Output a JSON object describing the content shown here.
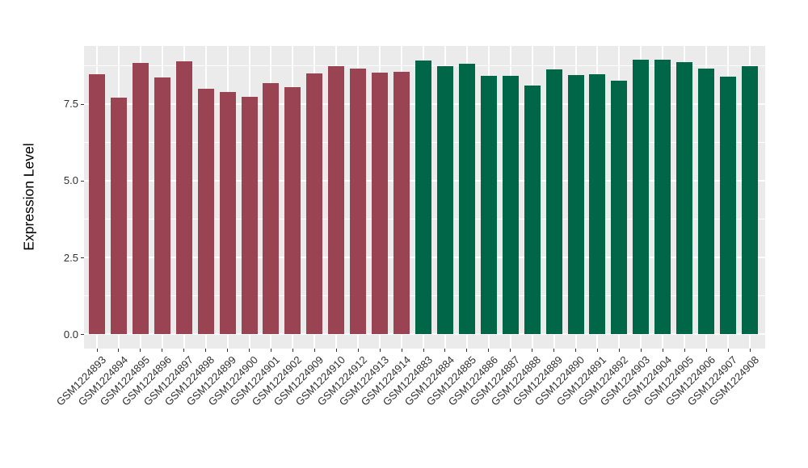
{
  "chart_data": {
    "type": "bar",
    "title": "",
    "xlabel": "",
    "ylabel": "Expression Level",
    "ylim": [
      -0.47,
      9.39
    ],
    "yticks": [
      0.0,
      2.5,
      5.0,
      7.5
    ],
    "ytick_labels": [
      "0.0",
      "2.5",
      "5.0",
      "7.5"
    ],
    "minor_yticks": [
      1.25,
      3.75,
      6.25,
      8.75
    ],
    "grid": true,
    "legend": "none",
    "panel_bg_color": "#EBEBEB",
    "grid_color": "#FFFFFF",
    "tick_color": "#333333",
    "group_colors": {
      "groupA": "#9A4453",
      "groupB": "#006648"
    },
    "categories": [
      "GSM1224893",
      "GSM1224894",
      "GSM1224895",
      "GSM1224896",
      "GSM1224897",
      "GSM1224898",
      "GSM1224899",
      "GSM1224900",
      "GSM1224901",
      "GSM1224902",
      "GSM1224909",
      "GSM1224910",
      "GSM1224912",
      "GSM1224913",
      "GSM1224914",
      "GSM1224883",
      "GSM1224884",
      "GSM1224885",
      "GSM1224886",
      "GSM1224887",
      "GSM1224888",
      "GSM1224889",
      "GSM1224890",
      "GSM1224891",
      "GSM1224892",
      "GSM1224903",
      "GSM1224904",
      "GSM1224905",
      "GSM1224906",
      "GSM1224907",
      "GSM1224908"
    ],
    "values": [
      8.48,
      7.72,
      8.84,
      8.36,
      8.89,
      8.0,
      7.9,
      7.74,
      8.17,
      8.04,
      8.5,
      8.72,
      8.65,
      8.51,
      8.56,
      8.91,
      8.74,
      8.81,
      8.41,
      8.41,
      8.09,
      8.62,
      8.44,
      8.46,
      8.27,
      8.93,
      8.94,
      8.86,
      8.66,
      8.4,
      8.73
    ],
    "bar_groups": [
      "groupA",
      "groupA",
      "groupA",
      "groupA",
      "groupA",
      "groupA",
      "groupA",
      "groupA",
      "groupA",
      "groupA",
      "groupA",
      "groupA",
      "groupA",
      "groupA",
      "groupA",
      "groupB",
      "groupB",
      "groupB",
      "groupB",
      "groupB",
      "groupB",
      "groupB",
      "groupB",
      "groupB",
      "groupB",
      "groupB",
      "groupB",
      "groupB",
      "groupB",
      "groupB",
      "groupB"
    ]
  }
}
